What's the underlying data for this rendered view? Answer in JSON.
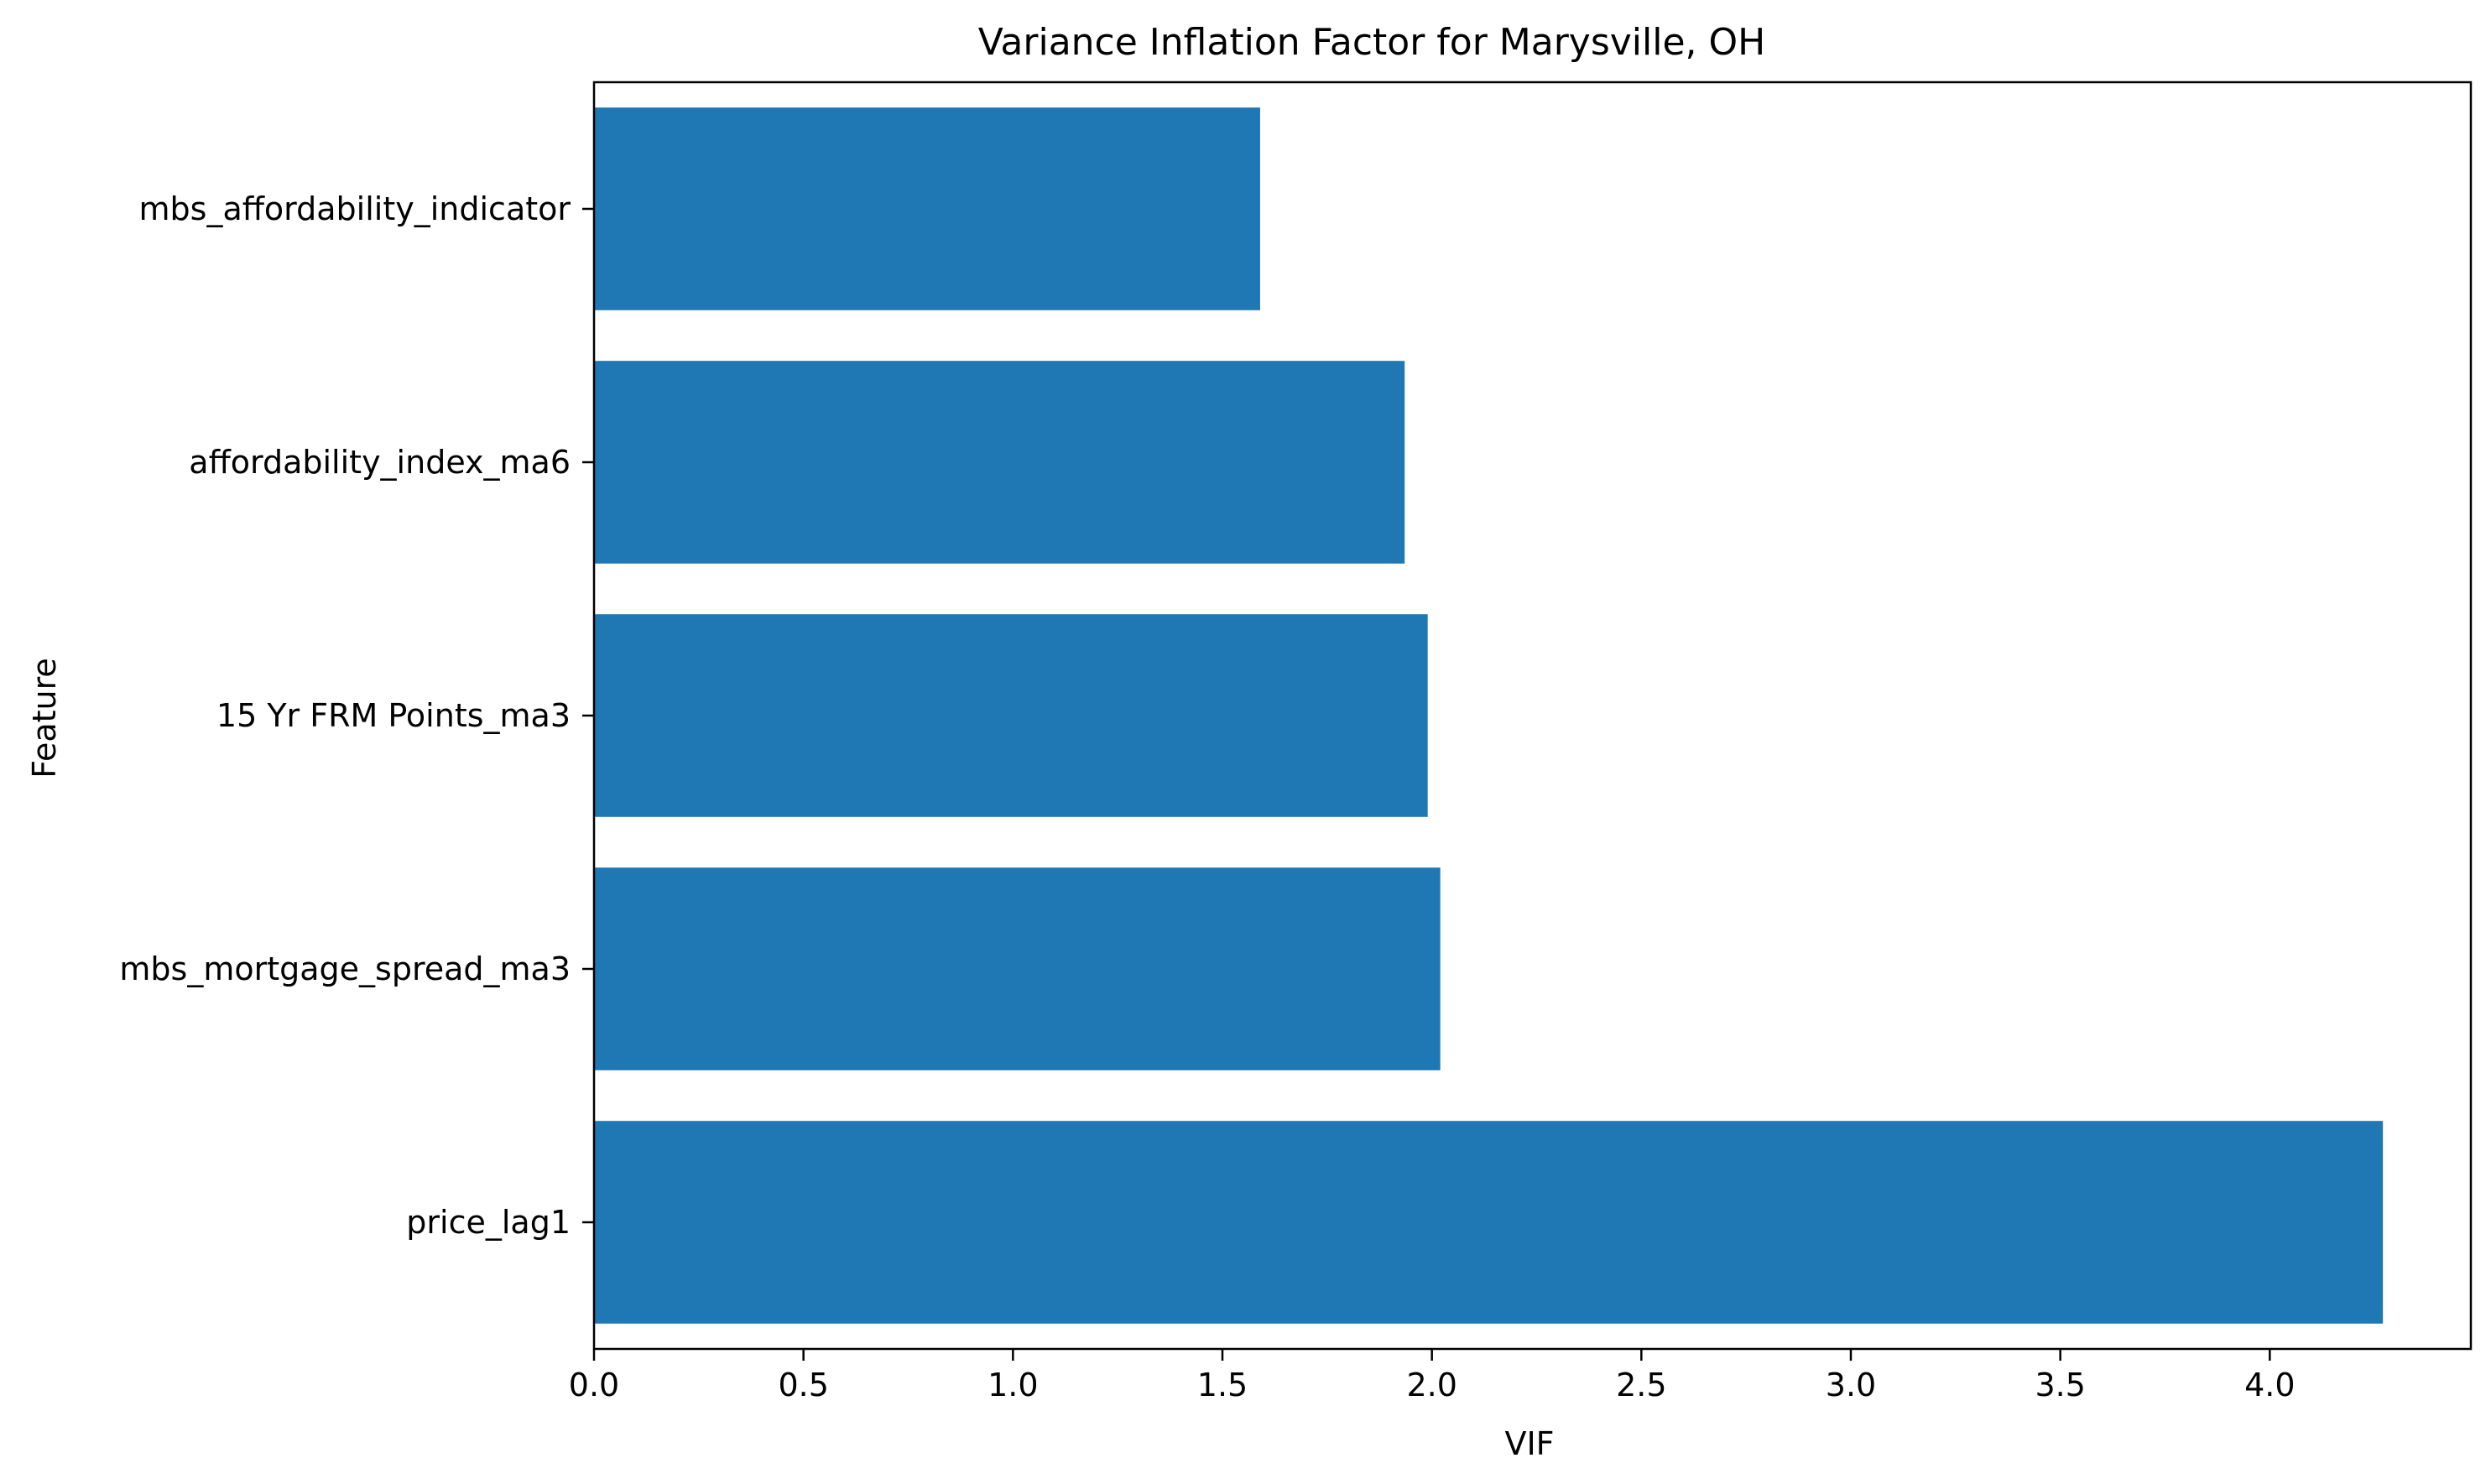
{
  "chart_data": {
    "type": "bar",
    "orientation": "horizontal",
    "title": "Variance Inflation Factor for Marysville, OH",
    "xlabel": "VIF",
    "ylabel": "Feature",
    "categories": [
      "mbs_affordability_indicator",
      "affordability_index_ma6",
      "15 Yr FRM Points_ma3",
      "mbs_mortgage_spread_ma3",
      "price_lag1"
    ],
    "values": [
      1.59,
      1.935,
      1.99,
      2.02,
      4.27
    ],
    "xlim": [
      0,
      4.48
    ],
    "xticks": [
      "0.0",
      "0.5",
      "1.0",
      "1.5",
      "2.0",
      "2.5",
      "3.0",
      "3.5",
      "4.0"
    ],
    "bar_color": "#1f77b4",
    "grid": false,
    "legend": "none"
  }
}
